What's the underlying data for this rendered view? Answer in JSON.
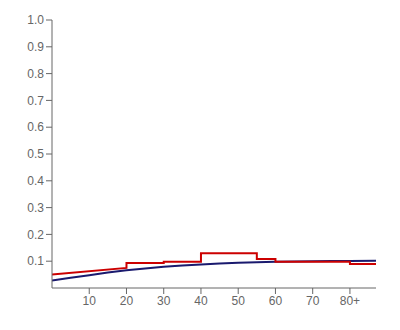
{
  "chart_data": {
    "type": "line",
    "grid": false,
    "xlim": [
      0,
      87
    ],
    "xticks": [
      10,
      20,
      30,
      40,
      50,
      60,
      70,
      {
        "value": 80,
        "label": "80+"
      }
    ],
    "ylim": [
      0,
      1.0
    ],
    "yticks": [
      0.1,
      0.2,
      0.3,
      0.4,
      0.5,
      0.6,
      0.7,
      0.8,
      0.9,
      {
        "value": 1.0,
        "label": "1.0"
      }
    ],
    "series": [
      {
        "color": "#1a1a6e",
        "x": [
          0,
          5,
          10,
          15,
          20,
          25,
          30,
          35,
          40,
          45,
          50,
          55,
          60,
          65,
          70,
          75,
          80,
          87
        ],
        "values": [
          0.028,
          0.038,
          0.048,
          0.058,
          0.066,
          0.073,
          0.079,
          0.084,
          0.088,
          0.091,
          0.094,
          0.096,
          0.098,
          0.099,
          0.1,
          0.101,
          0.101,
          0.102
        ]
      },
      {
        "color": "#cc0000",
        "x": [
          0,
          20,
          20,
          30,
          30,
          40,
          40,
          55,
          55,
          60,
          60,
          80,
          80,
          87
        ],
        "values": [
          0.05,
          0.075,
          0.093,
          0.093,
          0.098,
          0.098,
          0.13,
          0.13,
          0.108,
          0.108,
          0.098,
          0.098,
          0.09,
          0.09
        ]
      }
    ]
  }
}
